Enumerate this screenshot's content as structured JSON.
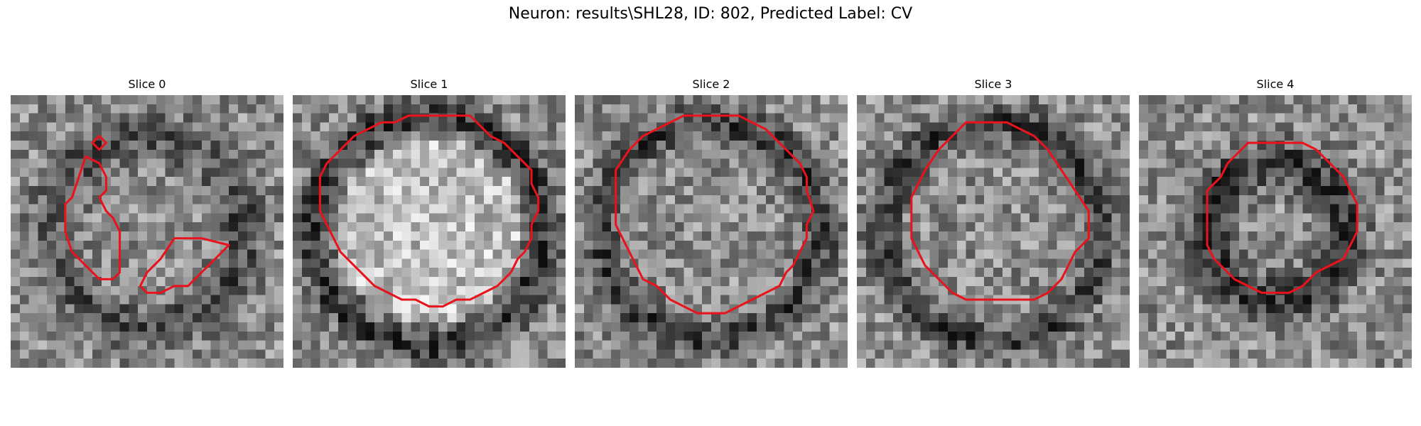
{
  "figure": {
    "title": "Neuron: results\\SHL28, ID: 802, Predicted Label: CV"
  },
  "colors": {
    "contour": "#e8131c"
  },
  "panels": [
    {
      "title": "Slice 0",
      "seed": 11,
      "pattern": "blob",
      "contours": [
        [
          [
            6,
            3.5
          ],
          [
            6.5,
            3
          ],
          [
            7,
            3.5
          ],
          [
            6.5,
            4
          ]
        ],
        [
          [
            5.5,
            4.5
          ],
          [
            6.5,
            5
          ],
          [
            7,
            6
          ],
          [
            7,
            7
          ],
          [
            6.5,
            7.5
          ],
          [
            7,
            8.5
          ],
          [
            7.5,
            9
          ],
          [
            8,
            10
          ],
          [
            8,
            12
          ],
          [
            8,
            13
          ],
          [
            7.5,
            13.5
          ],
          [
            6.5,
            13.5
          ],
          [
            5.5,
            12.5
          ],
          [
            4.5,
            11.5
          ],
          [
            4,
            10
          ],
          [
            4,
            8
          ],
          [
            4.5,
            7.5
          ],
          [
            5,
            6
          ]
        ],
        [
          [
            12,
            10.5
          ],
          [
            14,
            10.5
          ],
          [
            16,
            11
          ],
          [
            15,
            12
          ],
          [
            14,
            13
          ],
          [
            13,
            14
          ],
          [
            12,
            14
          ],
          [
            11,
            14.5
          ],
          [
            10,
            14.5
          ],
          [
            9.5,
            14
          ],
          [
            10,
            13
          ],
          [
            10.5,
            12.5
          ],
          [
            11,
            12
          ]
        ]
      ]
    },
    {
      "title": "Slice 1",
      "seed": 23,
      "pattern": "ring-bright",
      "contours": [
        [
          [
            10,
            1.5
          ],
          [
            13,
            1.5
          ],
          [
            13.5,
            2
          ],
          [
            14.5,
            3
          ],
          [
            15.5,
            3.5
          ],
          [
            16,
            4
          ],
          [
            16.5,
            4.5
          ],
          [
            17,
            5
          ],
          [
            17.5,
            5.5
          ],
          [
            17.5,
            6.5
          ],
          [
            18,
            7.5
          ],
          [
            18,
            8.5
          ],
          [
            17.5,
            9.5
          ],
          [
            17.5,
            10.5
          ],
          [
            17,
            11.5
          ],
          [
            16.5,
            12
          ],
          [
            16,
            13
          ],
          [
            15.5,
            13.5
          ],
          [
            15,
            14
          ],
          [
            14,
            14.5
          ],
          [
            13,
            15
          ],
          [
            12,
            15
          ],
          [
            11,
            15.5
          ],
          [
            10,
            15.5
          ],
          [
            9,
            15
          ],
          [
            8,
            15
          ],
          [
            7,
            14.5
          ],
          [
            6,
            14
          ],
          [
            5,
            13
          ],
          [
            4,
            12
          ],
          [
            3.5,
            11.5
          ],
          [
            3,
            10.5
          ],
          [
            2.5,
            9.5
          ],
          [
            2,
            8.5
          ],
          [
            2,
            7
          ],
          [
            2,
            6
          ],
          [
            2.5,
            5
          ],
          [
            3,
            4.5
          ],
          [
            3.5,
            4
          ],
          [
            4.5,
            3
          ],
          [
            5.5,
            2.5
          ],
          [
            6.5,
            2
          ],
          [
            7.5,
            2
          ],
          [
            8.5,
            1.5
          ]
        ]
      ]
    },
    {
      "title": "Slice 2",
      "seed": 37,
      "pattern": "ring-mid",
      "contours": [
        [
          [
            8,
            1.5
          ],
          [
            12,
            1.5
          ],
          [
            13,
            2
          ],
          [
            14,
            2.5
          ],
          [
            15,
            3.5
          ],
          [
            16,
            4.5
          ],
          [
            16.5,
            5
          ],
          [
            17,
            6
          ],
          [
            17,
            7
          ],
          [
            17.5,
            8.5
          ],
          [
            17,
            9.5
          ],
          [
            17,
            10.5
          ],
          [
            16.5,
            11.5
          ],
          [
            16,
            12.5
          ],
          [
            15.5,
            13
          ],
          [
            15,
            14
          ],
          [
            14,
            14.5
          ],
          [
            13,
            15
          ],
          [
            12,
            15.5
          ],
          [
            11,
            16
          ],
          [
            10,
            16
          ],
          [
            9,
            16
          ],
          [
            8,
            15.5
          ],
          [
            7,
            15
          ],
          [
            6,
            14
          ],
          [
            5,
            13.5
          ],
          [
            4.5,
            12.5
          ],
          [
            4,
            11.5
          ],
          [
            3.5,
            10.5
          ],
          [
            3,
            9.5
          ],
          [
            3,
            8
          ],
          [
            3,
            5.5
          ],
          [
            4,
            4
          ],
          [
            5,
            3
          ],
          [
            6,
            2.5
          ],
          [
            7,
            2
          ]
        ]
      ]
    },
    {
      "title": "Slice 3",
      "seed": 41,
      "pattern": "ring-mid",
      "contours": [
        [
          [
            8,
            2
          ],
          [
            11,
            2
          ],
          [
            12,
            2.5
          ],
          [
            13,
            3
          ],
          [
            14,
            4
          ],
          [
            15,
            5.5
          ],
          [
            16,
            7
          ],
          [
            17,
            8.5
          ],
          [
            17,
            10.5
          ],
          [
            16,
            11.5
          ],
          [
            15.5,
            12.5
          ],
          [
            15,
            13.5
          ],
          [
            14,
            14.5
          ],
          [
            13,
            15
          ],
          [
            8,
            15
          ],
          [
            7,
            14.5
          ],
          [
            6,
            13.5
          ],
          [
            5,
            12.5
          ],
          [
            4.5,
            11.5
          ],
          [
            4,
            10.5
          ],
          [
            4,
            7.5
          ],
          [
            4.5,
            6.5
          ],
          [
            5,
            5.5
          ],
          [
            6,
            4
          ],
          [
            7,
            3
          ]
        ]
      ]
    },
    {
      "title": "Slice 4",
      "seed": 53,
      "pattern": "ring-dark",
      "contours": [
        [
          [
            8,
            3.5
          ],
          [
            12,
            3.5
          ],
          [
            13,
            4
          ],
          [
            14,
            5
          ],
          [
            15,
            6
          ],
          [
            15.5,
            7
          ],
          [
            16,
            8
          ],
          [
            16,
            9
          ],
          [
            16,
            10
          ],
          [
            15.5,
            11
          ],
          [
            15,
            12
          ],
          [
            14,
            12.5
          ],
          [
            13,
            13
          ],
          [
            12,
            14
          ],
          [
            11,
            14.5
          ],
          [
            9,
            14.5
          ],
          [
            8,
            14
          ],
          [
            7,
            13.5
          ],
          [
            6,
            12.5
          ],
          [
            5.5,
            12
          ],
          [
            5,
            11
          ],
          [
            5,
            7
          ],
          [
            6,
            6
          ],
          [
            6.5,
            5
          ],
          [
            7.5,
            4
          ]
        ]
      ]
    }
  ]
}
